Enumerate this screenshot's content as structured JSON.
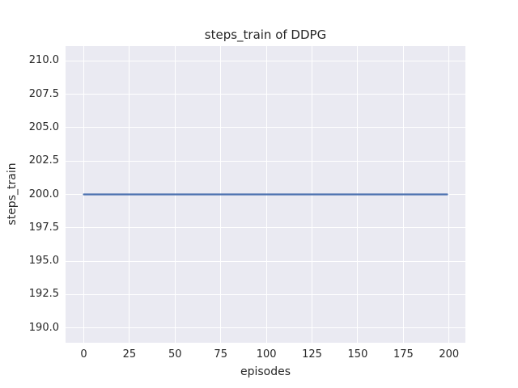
{
  "chart_data": {
    "type": "line",
    "title": "steps_train of DDPG",
    "xlabel": "episodes",
    "ylabel": "steps_train",
    "x_ticks": [
      0,
      25,
      50,
      75,
      100,
      125,
      150,
      175,
      200
    ],
    "x_tick_labels": [
      "0",
      "25",
      "50",
      "75",
      "100",
      "125",
      "150",
      "175",
      "200"
    ],
    "y_ticks": [
      190.0,
      192.5,
      195.0,
      197.5,
      200.0,
      202.5,
      205.0,
      207.5,
      210.0
    ],
    "y_tick_labels": [
      "190.0",
      "192.5",
      "195.0",
      "197.5",
      "200.0",
      "202.5",
      "205.0",
      "207.5",
      "210.0"
    ],
    "xlim": [
      -9.95,
      208.95
    ],
    "ylim": [
      188.9,
      211.1
    ],
    "grid": true,
    "legend": false,
    "series": [
      {
        "name": "steps_train",
        "color": "#4c72b0",
        "x": [
          0,
          199
        ],
        "y": [
          200,
          200
        ]
      }
    ],
    "colors": {
      "plot_background": "#eaeaf2",
      "gridline": "#ffffff",
      "text": "#262626",
      "line": "#4c72b0"
    }
  }
}
